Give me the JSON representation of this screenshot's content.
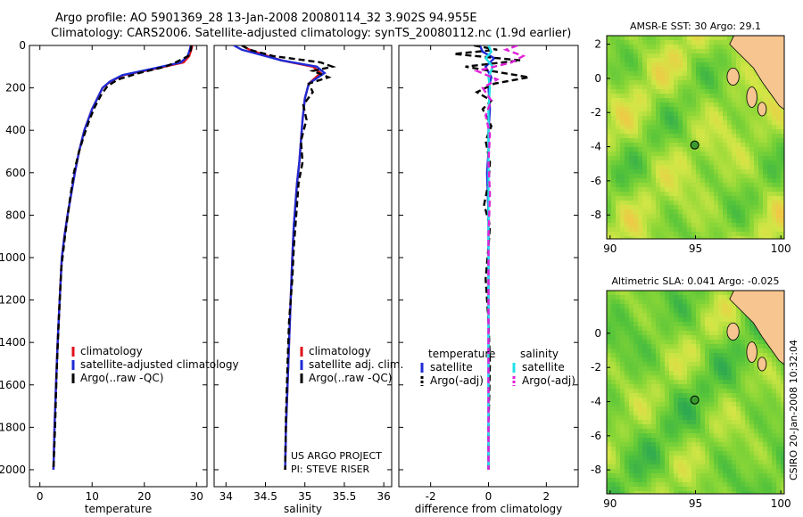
{
  "title": {
    "line1": "Argo profile: AO 5901369_28 13-Jan-2008 20080114_32 3.902S 94.955E",
    "line2": "Climatology: CARS2006. Satellite-adjusted climatology: synTS_20080112.nc (1.9d earlier)"
  },
  "credit": "CSIRO 20-Jan-2008 10:32:04",
  "colors": {
    "red": "#e0101a",
    "blue": "#1f2bd6",
    "black": "#000000",
    "cyan": "#22e0e8",
    "magenta": "#e020d8",
    "land": "#f7c590",
    "green": "#55c43a",
    "yellow": "#e8e84a"
  },
  "chart_data": [
    {
      "id": "temperature",
      "type": "line",
      "xlabel": "temperature",
      "xlim": [
        -2,
        32
      ],
      "ylim": [
        2080,
        0
      ],
      "xticks": [
        0,
        10,
        20,
        30
      ],
      "yticks": [
        0,
        200,
        400,
        600,
        800,
        1000,
        1200,
        1400,
        1600,
        1800,
        2000
      ],
      "legend": [
        "climatology",
        "satellite-adjusted climatology",
        "Argo(..raw -QC)"
      ],
      "series": [
        {
          "name": "climatology",
          "color": "red",
          "dash": false,
          "x": [
            29.2,
            29.0,
            28.6,
            27.5,
            22,
            16,
            13.5,
            12,
            11,
            10,
            8.5,
            7.5,
            6.7,
            6,
            5.3,
            4.7,
            4.2,
            3.8,
            3.4,
            3.1,
            2.8,
            2.6
          ],
          "y": [
            0,
            20,
            50,
            80,
            110,
            140,
            170,
            200,
            250,
            300,
            400,
            500,
            600,
            700,
            800,
            900,
            1000,
            1200,
            1400,
            1600,
            1800,
            2000
          ]
        },
        {
          "name": "satellite-adjusted climatology",
          "color": "blue",
          "dash": false,
          "x": [
            28.9,
            28.7,
            28.3,
            27,
            21.5,
            15.8,
            13.4,
            12,
            11,
            10,
            8.5,
            7.5,
            6.7,
            6,
            5.3,
            4.7,
            4.2,
            3.8,
            3.4,
            3.1,
            2.8,
            2.6
          ],
          "y": [
            0,
            20,
            50,
            80,
            110,
            140,
            170,
            200,
            250,
            300,
            400,
            500,
            600,
            700,
            800,
            900,
            1000,
            1200,
            1400,
            1600,
            1800,
            2000
          ]
        },
        {
          "name": "Argo(..raw -QC)",
          "color": "black",
          "dash": true,
          "x": [
            29.0,
            28.9,
            28.4,
            26,
            24,
            19,
            15,
            13,
            11.8,
            10.5,
            9.5,
            8.5,
            7.5,
            6.5,
            5.6,
            4.8,
            4.1,
            3.6,
            3.2,
            2.9,
            2.6
          ],
          "y": [
            0,
            20,
            50,
            80,
            100,
            130,
            160,
            190,
            230,
            290,
            350,
            420,
            500,
            600,
            750,
            900,
            1050,
            1300,
            1550,
            1800,
            2000
          ]
        }
      ]
    },
    {
      "id": "salinity",
      "type": "line",
      "xlabel": "salinity",
      "xlim": [
        33.85,
        36.1
      ],
      "ylim": [
        2080,
        0
      ],
      "xticks": [
        34,
        34.5,
        35,
        35.5,
        36
      ],
      "legend": [
        "climatology",
        "satellite adj. clim.",
        "Argo(..raw -QC)"
      ],
      "annotation": [
        "US ARGO PROJECT",
        "PI: STEVE RISER"
      ],
      "series": [
        {
          "name": "climatology",
          "color": "red",
          "dash": false,
          "x": [
            34.2,
            34.3,
            34.45,
            34.7,
            35.1,
            35.2,
            35.05,
            35.0,
            34.97,
            34.95,
            34.93,
            34.9,
            34.88,
            34.86,
            34.84,
            34.82,
            34.8,
            34.78,
            34.76,
            34.75
          ],
          "y": [
            0,
            20,
            40,
            70,
            100,
            130,
            180,
            250,
            350,
            450,
            550,
            650,
            750,
            850,
            1000,
            1200,
            1400,
            1600,
            1800,
            2000
          ]
        },
        {
          "name": "satellite adj. clim.",
          "color": "blue",
          "dash": false,
          "x": [
            34.1,
            34.2,
            34.4,
            34.7,
            35.15,
            35.25,
            35.05,
            35.0,
            34.97,
            34.95,
            34.93,
            34.9,
            34.88,
            34.86,
            34.84,
            34.82,
            34.8,
            34.78,
            34.76,
            34.75
          ],
          "y": [
            0,
            20,
            40,
            70,
            100,
            130,
            180,
            250,
            350,
            450,
            550,
            650,
            750,
            850,
            1000,
            1200,
            1400,
            1600,
            1800,
            2000
          ]
        },
        {
          "name": "Argo(..raw -QC)",
          "color": "black",
          "dash": true,
          "x": [
            34.2,
            34.3,
            34.6,
            35.2,
            35.35,
            35.1,
            35.3,
            35.05,
            35.1,
            34.98,
            35.02,
            34.95,
            34.97,
            34.92,
            34.9,
            34.88,
            34.86,
            34.84,
            34.8,
            34.78,
            34.76,
            34.75
          ],
          "y": [
            0,
            20,
            50,
            80,
            100,
            120,
            150,
            180,
            220,
            280,
            350,
            450,
            550,
            650,
            750,
            850,
            950,
            1100,
            1300,
            1500,
            1750,
            2000
          ]
        }
      ]
    },
    {
      "id": "difference",
      "type": "line",
      "xlabel": "difference from climatology",
      "xlim": [
        -3.1,
        3.1
      ],
      "ylim": [
        2080,
        0
      ],
      "xticks": [
        -2,
        0,
        2
      ],
      "legend_groups": [
        {
          "heading": "temperature",
          "items": [
            "satellite",
            "Argo(-adj)"
          ]
        },
        {
          "heading": "salinity",
          "items": [
            "satellite",
            "Argo(-adj)"
          ]
        }
      ],
      "series": [
        {
          "name": "temperature satellite",
          "color": "blue",
          "dash": false,
          "x": [
            -0.3,
            -0.2,
            0.2,
            -0.1,
            0.1,
            0,
            0.05,
            0,
            0,
            -0.05,
            0,
            0,
            0,
            0,
            0,
            0
          ],
          "y": [
            0,
            30,
            60,
            100,
            150,
            200,
            300,
            400,
            500,
            600,
            800,
            1000,
            1200,
            1400,
            1700,
            2000
          ]
        },
        {
          "name": "temperature Argo(-adj)",
          "color": "black",
          "dash": true,
          "x": [
            -0.5,
            0.3,
            -1.2,
            1.1,
            -0.8,
            1.4,
            0.2,
            -0.4,
            0.1,
            -0.2,
            0.1,
            -0.1,
            0.05,
            0,
            -0.15,
            0.05,
            0,
            -0.1,
            0,
            0.05,
            0,
            0
          ],
          "y": [
            0,
            20,
            40,
            70,
            100,
            150,
            180,
            220,
            260,
            300,
            380,
            450,
            550,
            650,
            750,
            850,
            950,
            1100,
            1300,
            1500,
            1800,
            2000
          ]
        },
        {
          "name": "salinity satellite",
          "color": "cyan",
          "dash": false,
          "x": [
            0,
            0.1,
            -0.1,
            0.15,
            0,
            0.05,
            0,
            0,
            0,
            0,
            0,
            0,
            0,
            0,
            0
          ],
          "y": [
            0,
            30,
            60,
            100,
            150,
            200,
            300,
            400,
            500,
            700,
            900,
            1100,
            1400,
            1700,
            2000
          ]
        },
        {
          "name": "salinity Argo(-adj)",
          "color": "magenta",
          "dash": true,
          "x": [
            1.0,
            0.6,
            1.2,
            0.8,
            -0.4,
            0.3,
            -0.2,
            0.1,
            -0.1,
            0.05,
            0,
            0.05,
            0,
            0,
            0,
            0
          ],
          "y": [
            0,
            20,
            50,
            80,
            120,
            160,
            200,
            260,
            330,
            420,
            550,
            700,
            900,
            1200,
            1600,
            2000
          ]
        }
      ]
    },
    {
      "id": "sst-map",
      "type": "heatmap",
      "title": "AMSR-E SST: 30 Argo: 29.1",
      "xlim": [
        89.8,
        100.2
      ],
      "ylim": [
        -9.4,
        2.5
      ],
      "xticks": [
        90,
        95,
        100
      ],
      "yticks": [
        2,
        0,
        -2,
        -4,
        -6,
        -8
      ],
      "marker": {
        "lon": 94.955,
        "lat": -3.902
      }
    },
    {
      "id": "sla-map",
      "type": "heatmap",
      "title": "Altimetric SLA: 0.041 Argo: -0.025",
      "xlim": [
        89.8,
        100.2
      ],
      "ylim": [
        -9.4,
        2.5
      ],
      "xticks": [
        90,
        95,
        100
      ],
      "yticks": [
        0,
        -2,
        -4,
        -6,
        -8
      ],
      "marker": {
        "lon": 94.955,
        "lat": -3.902
      }
    }
  ]
}
